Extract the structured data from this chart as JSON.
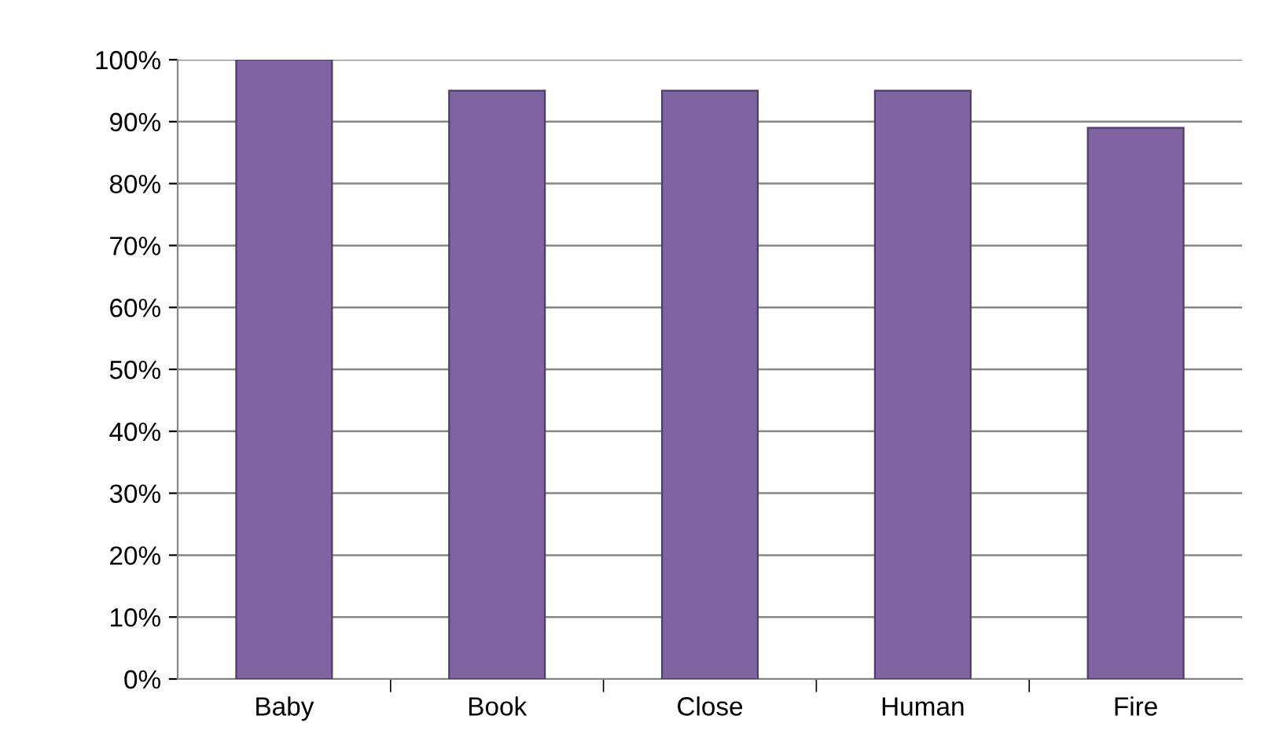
{
  "chart_data": {
    "type": "bar",
    "categories": [
      "Baby",
      "Book",
      "Close",
      "Human",
      "Fire"
    ],
    "values": [
      100,
      95,
      95,
      95,
      89
    ],
    "color": "#8064a2",
    "ylim": [
      0,
      100
    ],
    "yticks": [
      {
        "value": 0,
        "label": "0%"
      },
      {
        "value": 10,
        "label": "10%"
      },
      {
        "value": 20,
        "label": "20%"
      },
      {
        "value": 30,
        "label": "30%"
      },
      {
        "value": 40,
        "label": "40%"
      },
      {
        "value": 50,
        "label": "50%"
      },
      {
        "value": 60,
        "label": "60%"
      },
      {
        "value": 70,
        "label": "70%"
      },
      {
        "value": 80,
        "label": "80%"
      },
      {
        "value": 90,
        "label": "90%"
      },
      {
        "value": 100,
        "label": "100%"
      }
    ],
    "grid": "y",
    "legend": false
  }
}
